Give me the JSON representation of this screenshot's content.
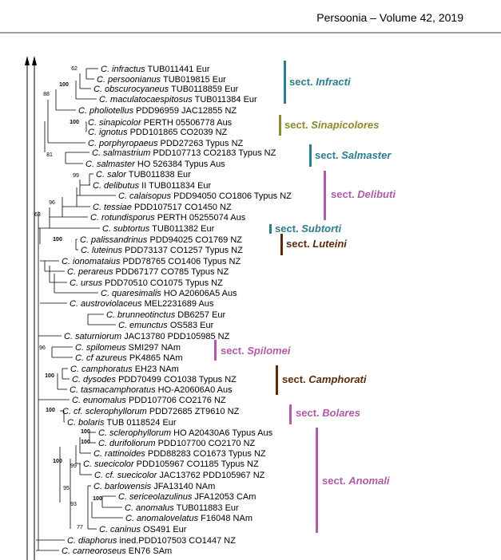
{
  "header": {
    "title": "Persoonia – Volume 42, 2019"
  },
  "taxa": [
    {
      "name": "C. infractus",
      "rest": "TUB011441 Eur"
    },
    {
      "name": "C. persoonianus",
      "rest": "TUB019815 Eur"
    },
    {
      "name": "C. obscurocyaneus",
      "rest": "TUB0118859 Eur"
    },
    {
      "name": "C. maculatocaespitosus",
      "rest": "TUB011384 Eur"
    },
    {
      "name": "C. pholiotellus",
      "rest": "PDD96959 JAC12855 NZ"
    },
    {
      "name": "C. sinapicolor",
      "rest": "PERTH 05506778 Aus"
    },
    {
      "name": "C. ignotus",
      "rest": "PDD101865 CO2039 NZ"
    },
    {
      "name": "C. porphyropaeus",
      "rest": "PDD27263 Typus NZ"
    },
    {
      "name": "C. salmastrium",
      "rest": "PDD107713 CO2183 Typus NZ"
    },
    {
      "name": "C. salmaster",
      "rest": "HO 526384 Typus Aus"
    },
    {
      "name": "C. salor",
      "rest": "TUB011838 Eur"
    },
    {
      "name": "C. delibutus",
      "rest": "II TUB011834 Eur"
    },
    {
      "name": "C. calaisopus",
      "rest": "PDD94050 CO1806 Typus NZ"
    },
    {
      "name": "C. tessiae",
      "rest": "PDD107517 CO1450 NZ"
    },
    {
      "name": "C. rotundisporus",
      "rest": "PERTH 05255074 Aus"
    },
    {
      "name": "C. subtortus",
      "rest": "TUB011382 Eur"
    },
    {
      "name": "C. palissandrinus",
      "rest": "PDD94025 CO1769 NZ"
    },
    {
      "name": "C. luteinus",
      "rest": "PDD73137 CO1257 Typus NZ"
    },
    {
      "name": "C. ionomataius",
      "rest": "PDD78765 CO1406 Typus NZ"
    },
    {
      "name": "C. perareus",
      "rest": "PDD67177 CO785 Typus NZ"
    },
    {
      "name": "C. ursus",
      "rest": "PDD70510 CO1075 Typus NZ"
    },
    {
      "name": "C. quaresimalis",
      "rest": "HO A20606A5 Aus"
    },
    {
      "name": "C. austroviolaceus",
      "rest": "MEL2231689 Aus"
    },
    {
      "name": "C. brunneotinctus",
      "rest": "DB6257 Eur"
    },
    {
      "name": "C. emunctus",
      "rest": "OS583 Eur"
    },
    {
      "name": "C. saturniorum",
      "rest": "JAC13780 PDD105985 NZ"
    },
    {
      "name": "C. spilomeus",
      "rest": "SMI297 NAm"
    },
    {
      "name": "C. cf azureus",
      "rest": "PK4865 NAm"
    },
    {
      "name": "C. camphoratus",
      "rest": "EH23 NAm"
    },
    {
      "name": "C. dysodes",
      "rest": "PDD70499 CO1038 Typus NZ"
    },
    {
      "name": "C. tasmacamphoratus",
      "rest": "HO-A20606A0 Aus"
    },
    {
      "name": "C. eunomalus",
      "rest": "PDD107706 CO2176 NZ"
    },
    {
      "name": "C. cf. sclerophyllorum",
      "rest": "PDD72685 ZT9610 NZ"
    },
    {
      "name": "C. bolaris",
      "rest": "TUB 0118524 Eur"
    },
    {
      "name": "C. sclerophyllorum",
      "rest": "HO A20430A6 Typus Aus"
    },
    {
      "name": "C. durifoliorum",
      "rest": "PDD107700 CO2170 NZ"
    },
    {
      "name": "C. rattinoides",
      "rest": "PDD88283 CO1673 Typus NZ"
    },
    {
      "name": "C. suecicolor",
      "rest": "PDD105967 CO1185 Typus NZ"
    },
    {
      "name": "C. cf. suecicolor",
      "rest": "JAC13762 PDD105967 NZ"
    },
    {
      "name": "C. barlowensis",
      "rest": "JFA13140 NAm"
    },
    {
      "name": "C. sericeolazulinus",
      "rest": "JFA12053 CAm"
    },
    {
      "name": "C. anomalus",
      "rest": "TUB011883 Eur"
    },
    {
      "name": "C. anomalovelatus",
      "rest": "F16048 NAm"
    },
    {
      "name": "C. caninus",
      "rest": "OS491 Eur"
    },
    {
      "name": "C. diaphorus",
      "rest": "ined.PDD107503 CO1447 NZ"
    },
    {
      "name": "C. carneoroseus",
      "rest": "EN76 SAm"
    }
  ],
  "support": [
    "62",
    "100",
    "88",
    "100",
    "81",
    "99",
    "96",
    "63",
    "100",
    "96",
    "100",
    "100",
    "100",
    "100",
    "100",
    "99",
    "95",
    "100",
    "93",
    "77"
  ],
  "sections": [
    {
      "prefix": "sect.",
      "name": "Infracti",
      "color": "#2b7d8e"
    },
    {
      "prefix": "sect.",
      "name": "Sinapicolores",
      "color": "#8c8a2c"
    },
    {
      "prefix": "sect.",
      "name": "Salmaster",
      "color": "#2b7d8e"
    },
    {
      "prefix": "sect.",
      "name": "Delibuti",
      "color": "#b05aa8"
    },
    {
      "prefix": "sect.",
      "name": "Subtorti",
      "color": "#2b7d8e"
    },
    {
      "prefix": "sect.",
      "name": "Luteini",
      "color": "#5a2a0c"
    },
    {
      "prefix": "sect.",
      "name": "Spilomei",
      "color": "#b05aa8"
    },
    {
      "prefix": "sect.",
      "name": "Camphorati",
      "color": "#5a2a0c"
    },
    {
      "prefix": "sect.",
      "name": "Bolares",
      "color": "#b05aa8"
    },
    {
      "prefix": "sect.",
      "name": "Anomali",
      "color": "#b05aa8"
    }
  ]
}
